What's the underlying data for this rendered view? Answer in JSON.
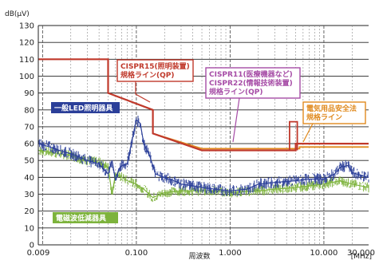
{
  "chart_data": {
    "type": "line",
    "x_scale": "log",
    "xlim": [
      0.009,
      30
    ],
    "ylim": [
      0,
      130
    ],
    "ylabel": "dB(μV)",
    "xlabel": "周波数",
    "x_unit": "[MHz]",
    "x_ticks": [
      {
        "v": 0.009,
        "label": "0.009"
      },
      {
        "v": 0.1,
        "label": "0.100"
      },
      {
        "v": 1,
        "label": "1.000"
      },
      {
        "v": 10,
        "label": "10.000"
      },
      {
        "v": 30,
        "label": "30.000"
      }
    ],
    "y_ticks": [
      0,
      10,
      20,
      30,
      40,
      50,
      60,
      70,
      80,
      90,
      100,
      110,
      120,
      130
    ],
    "grid": true,
    "colors": {
      "cispr15": "#c0392b",
      "cispr11": "#a64ca6",
      "denan": "#e08a1e",
      "led": "#2b3f99",
      "reduced": "#7db33c",
      "label_led_bg": "#2b3f99",
      "label_reduced_bg": "#7db33c"
    },
    "series": [
      {
        "name": "CISPR15(照明装置)規格ライン(QP)",
        "kind": "limit",
        "x": [
          0.009,
          0.05,
          0.05,
          0.15,
          0.15,
          0.5,
          5,
          5,
          30
        ],
        "y": [
          110,
          110,
          90,
          80,
          66,
          56,
          56,
          60,
          60
        ]
      },
      {
        "name": "CISPR11(医療機器など) CISPR22(情報技術装置)規格ライン(QP)",
        "kind": "limit",
        "x": [
          0.15,
          0.5,
          5,
          5,
          30
        ],
        "y": [
          66,
          56,
          56,
          60,
          60
        ]
      },
      {
        "name": "電気用品安全法規格ライン",
        "kind": "limit",
        "x": [
          0.15,
          0.5,
          5.5,
          5.5,
          30
        ],
        "y": [
          66,
          57,
          57,
          58,
          58
        ]
      },
      {
        "name": "一般LED照明器具",
        "kind": "measured",
        "x": [
          0.009,
          0.012,
          0.015,
          0.02,
          0.025,
          0.03,
          0.04,
          0.05,
          0.055,
          0.06,
          0.065,
          0.07,
          0.08,
          0.09,
          0.1,
          0.11,
          0.12,
          0.14,
          0.16,
          0.2,
          0.25,
          0.3,
          0.4,
          0.5,
          0.7,
          1,
          1.5,
          2,
          3,
          5,
          7,
          10,
          13,
          15,
          18,
          20,
          25,
          30
        ],
        "y": [
          60,
          58,
          56,
          54,
          52,
          50,
          48,
          42,
          50,
          38,
          45,
          47,
          48,
          62,
          74,
          72,
          60,
          52,
          42,
          40,
          38,
          36,
          35,
          34,
          33,
          32,
          33,
          36,
          37,
          38,
          39,
          39,
          42,
          46,
          47,
          43,
          41,
          40
        ]
      },
      {
        "name": "電磁波低減器具",
        "kind": "measured",
        "x": [
          0.009,
          0.012,
          0.015,
          0.02,
          0.025,
          0.03,
          0.04,
          0.05,
          0.055,
          0.06,
          0.07,
          0.08,
          0.09,
          0.1,
          0.12,
          0.15,
          0.18,
          0.2,
          0.3,
          0.5,
          0.7,
          1,
          2,
          3,
          5,
          10,
          15,
          20,
          30
        ],
        "y": [
          56,
          55,
          54,
          53,
          51,
          50,
          49,
          46,
          30,
          42,
          40,
          38,
          37,
          36,
          33,
          28,
          30,
          31,
          32,
          32,
          32,
          31,
          32,
          33,
          34,
          36,
          38,
          36,
          34
        ]
      }
    ],
    "annotations": [
      {
        "id": "cispr15",
        "lines": [
          "CISPR15(照明装置)",
          "規格ライン(QP)"
        ]
      },
      {
        "id": "cispr11",
        "lines": [
          "CISPR11(医療機器など)",
          "CISPR22(情報技術装置)",
          "規格ライン(QP)"
        ]
      },
      {
        "id": "denan",
        "lines": [
          "電気用品安全法",
          "規格ライン"
        ]
      },
      {
        "id": "led",
        "lines": [
          "一般LED照明器具"
        ]
      },
      {
        "id": "reduced",
        "lines": [
          "電磁波低減器具"
        ]
      }
    ]
  }
}
